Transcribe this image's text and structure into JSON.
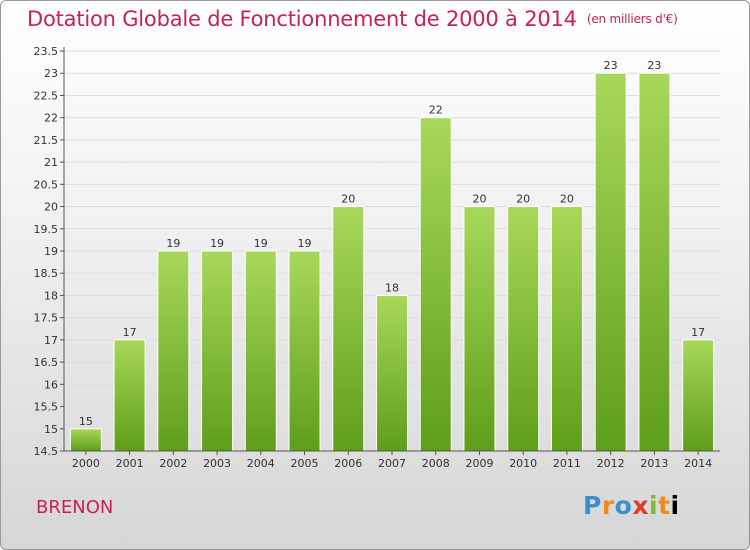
{
  "header": {
    "title": "Dotation Globale de Fonctionnement de 2000 à 2014",
    "unit": "(en milliers d'€)"
  },
  "footer": {
    "place": "BRENON",
    "logo": "Proxiti"
  },
  "colors": {
    "title": "#c8205a",
    "bar_top": "#a8d85a",
    "bar_bottom": "#5e9e1a",
    "grid": "#dddddd",
    "axis": "#555555"
  },
  "chart_data": {
    "type": "bar",
    "title": "Dotation Globale de Fonctionnement de 2000 à 2014",
    "subtitle": "(en milliers d'€)",
    "xlabel": "",
    "ylabel": "",
    "categories": [
      "2000",
      "2001",
      "2002",
      "2003",
      "2004",
      "2005",
      "2006",
      "2007",
      "2008",
      "2009",
      "2010",
      "2011",
      "2012",
      "2013",
      "2014"
    ],
    "values": [
      15,
      17,
      19,
      19,
      19,
      19,
      20,
      18,
      22,
      20,
      20,
      20,
      23,
      23,
      17
    ],
    "ylim": [
      14.5,
      23.5
    ],
    "yticks": [
      14.5,
      15,
      15.5,
      16,
      16.5,
      17,
      17.5,
      18,
      18.5,
      19,
      19.5,
      20,
      20.5,
      21,
      21.5,
      22,
      22.5,
      23,
      23.5
    ],
    "grid": true,
    "data_labels": true
  }
}
